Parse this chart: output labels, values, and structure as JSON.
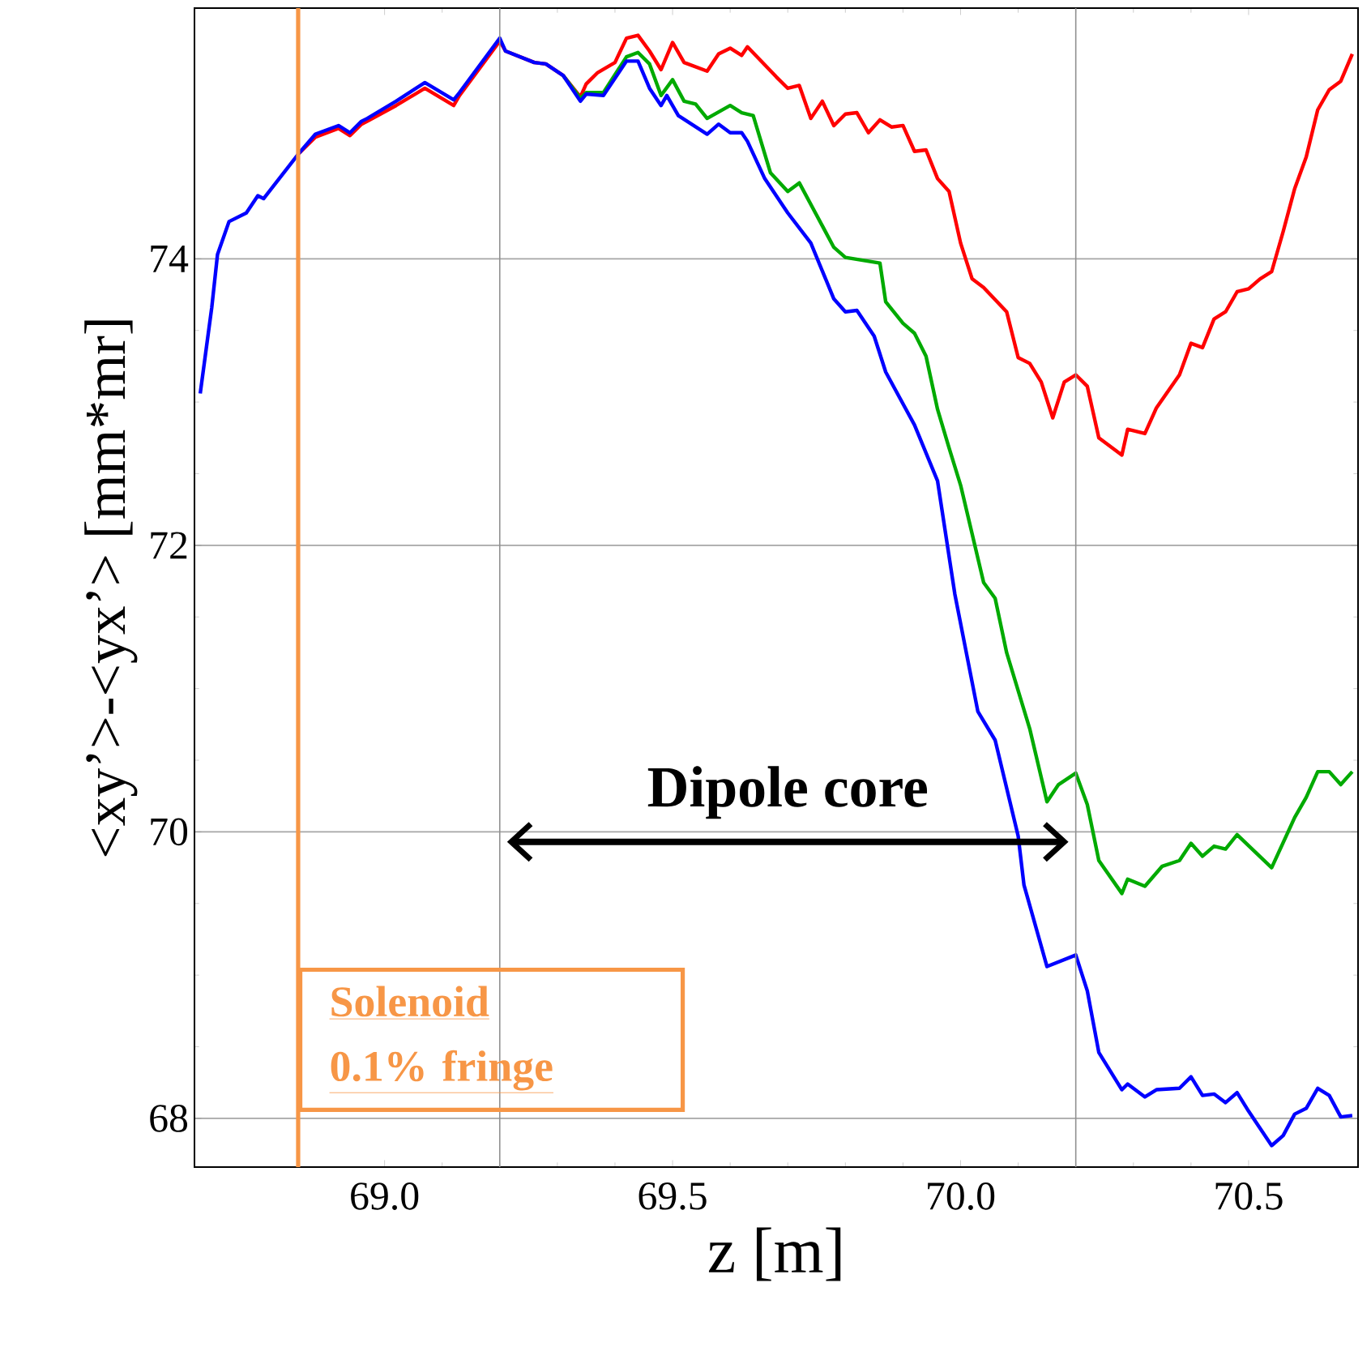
{
  "chart_data": {
    "type": "line",
    "xlabel": "z [m]",
    "ylabel": "<xy’>-<yx’> [mm*mr]",
    "xlim": [
      68.67,
      70.69
    ],
    "ylim": [
      67.66,
      75.75
    ],
    "xticks": [
      {
        "value": 69,
        "label": "69.0"
      },
      69.5,
      {
        "value": 70,
        "label": "70.0"
      },
      70.5
    ],
    "yticks": [
      68,
      70,
      72,
      74
    ],
    "grid": "y",
    "marker": "none",
    "line_style": "solid",
    "series": [
      {
        "color": "#ff0000",
        "x": [
          68.85,
          68.88,
          68.92,
          68.94,
          68.96,
          68.97,
          69.02,
          69.07,
          69.12,
          69.13,
          69.2,
          69.21,
          69.26,
          69.28,
          69.31,
          69.34,
          69.35,
          69.37,
          69.4,
          69.42,
          69.44,
          69.46,
          69.48,
          69.5,
          69.52,
          69.56,
          69.58,
          69.6,
          69.62,
          69.63,
          69.68,
          69.7,
          69.72,
          69.74,
          69.76,
          69.78,
          69.8,
          69.82,
          69.84,
          69.86,
          69.88,
          69.9,
          69.92,
          69.94,
          69.96,
          69.98,
          70.0,
          70.02,
          70.04,
          70.08,
          70.1,
          70.12,
          70.14,
          70.16,
          70.18,
          70.2,
          70.22,
          70.24,
          70.28,
          70.29,
          70.32,
          70.34,
          70.38,
          70.4,
          70.42,
          70.44,
          70.46,
          70.48,
          70.5,
          70.52,
          70.54,
          70.56,
          70.58,
          70.6,
          70.62,
          70.64,
          70.66,
          70.68
        ],
        "values": [
          74.73,
          74.85,
          74.91,
          74.86,
          74.94,
          74.96,
          75.07,
          75.19,
          75.07,
          75.14,
          75.52,
          75.45,
          75.37,
          75.36,
          75.28,
          75.13,
          75.22,
          75.3,
          75.37,
          75.54,
          75.56,
          75.45,
          75.32,
          75.51,
          75.37,
          75.31,
          75.43,
          75.47,
          75.42,
          75.48,
          75.27,
          75.19,
          75.21,
          74.98,
          75.1,
          74.93,
          75.01,
          75.02,
          74.88,
          74.97,
          74.92,
          74.93,
          74.75,
          74.76,
          74.56,
          74.47,
          74.11,
          73.86,
          73.8,
          73.63,
          73.31,
          73.27,
          73.14,
          72.89,
          73.14,
          73.19,
          73.11,
          72.75,
          72.63,
          72.81,
          72.78,
          72.96,
          73.19,
          73.41,
          73.38,
          73.58,
          73.63,
          73.77,
          73.79,
          73.86,
          73.91,
          74.19,
          74.49,
          74.71,
          75.04,
          75.18,
          75.24,
          75.43
        ]
      },
      {
        "color": "#00aa00",
        "x": [
          69.31,
          69.34,
          69.35,
          69.38,
          69.42,
          69.44,
          69.46,
          69.48,
          69.5,
          69.52,
          69.54,
          69.56,
          69.6,
          69.62,
          69.64,
          69.67,
          69.7,
          69.72,
          69.78,
          69.8,
          69.86,
          69.87,
          69.9,
          69.92,
          69.94,
          69.96,
          69.98,
          70.0,
          70.04,
          70.06,
          70.08,
          70.12,
          70.15,
          70.17,
          70.2,
          70.22,
          70.24,
          70.28,
          70.29,
          70.32,
          70.35,
          70.38,
          70.4,
          70.42,
          70.44,
          70.46,
          70.48,
          70.54,
          70.58,
          70.6,
          70.62,
          70.64,
          70.66,
          70.68
        ],
        "values": [
          75.28,
          75.12,
          75.16,
          75.16,
          75.41,
          75.44,
          75.36,
          75.14,
          75.25,
          75.1,
          75.08,
          74.98,
          75.07,
          75.02,
          75.0,
          74.6,
          74.47,
          74.53,
          74.08,
          74.01,
          73.97,
          73.7,
          73.55,
          73.48,
          73.32,
          72.95,
          72.68,
          72.42,
          71.74,
          71.63,
          71.25,
          70.72,
          70.21,
          70.33,
          70.41,
          70.19,
          69.8,
          69.57,
          69.67,
          69.62,
          69.76,
          69.8,
          69.92,
          69.83,
          69.9,
          69.88,
          69.98,
          69.75,
          70.1,
          70.24,
          70.42,
          70.42,
          70.33,
          70.42
        ]
      },
      {
        "color": "#0000ff",
        "x": [
          68.68,
          68.7,
          68.71,
          68.73,
          68.76,
          68.78,
          68.79,
          68.85,
          68.88,
          68.92,
          68.94,
          68.96,
          68.97,
          69.02,
          69.07,
          69.12,
          69.13,
          69.2,
          69.21,
          69.26,
          69.28,
          69.31,
          69.34,
          69.35,
          69.38,
          69.42,
          69.44,
          69.46,
          69.48,
          69.49,
          69.51,
          69.56,
          69.58,
          69.6,
          69.62,
          69.63,
          69.66,
          69.7,
          69.74,
          69.78,
          69.8,
          69.82,
          69.85,
          69.87,
          69.92,
          69.96,
          69.99,
          70.03,
          70.06,
          70.1,
          70.11,
          70.15,
          70.2,
          70.22,
          70.24,
          70.28,
          70.29,
          70.32,
          70.34,
          70.38,
          70.4,
          70.42,
          70.44,
          70.46,
          70.48,
          70.5,
          70.54,
          70.56,
          70.58,
          70.6,
          70.62,
          70.64,
          70.66,
          70.68
        ],
        "values": [
          73.06,
          73.66,
          74.03,
          74.26,
          74.32,
          74.44,
          74.42,
          74.73,
          74.87,
          74.93,
          74.88,
          74.96,
          74.98,
          75.1,
          75.23,
          75.11,
          75.16,
          75.54,
          75.45,
          75.37,
          75.36,
          75.28,
          75.1,
          75.15,
          75.14,
          75.38,
          75.38,
          75.19,
          75.07,
          75.14,
          75.0,
          74.87,
          74.94,
          74.88,
          74.88,
          74.82,
          74.56,
          74.32,
          74.11,
          73.72,
          73.63,
          73.64,
          73.46,
          73.21,
          72.84,
          72.45,
          71.66,
          70.84,
          70.64,
          69.97,
          69.63,
          69.06,
          69.14,
          68.89,
          68.46,
          68.2,
          68.24,
          68.15,
          68.2,
          68.21,
          68.29,
          68.16,
          68.17,
          68.11,
          68.18,
          68.05,
          67.81,
          67.88,
          68.03,
          68.07,
          68.21,
          68.16,
          68.01,
          68.02
        ]
      },
      {
        "type": "line",
        "color": "#000000",
        "x": [
          69.22,
          70.18
        ],
        "values": [
          69.93,
          69.93
        ]
      }
    ],
    "ref_lines": [
      {
        "axis": "x",
        "value": 69.2,
        "color": "#909090"
      },
      {
        "axis": "x",
        "value": 70.2,
        "color": "#909090"
      },
      {
        "axis": "x",
        "value": 68.85,
        "color": "#f79646"
      }
    ],
    "annotations": [
      "Solenoid",
      "0.1% fringe",
      {
        "text": "Dipole core",
        "x": 69.7,
        "y": 69.93
      }
    ]
  }
}
